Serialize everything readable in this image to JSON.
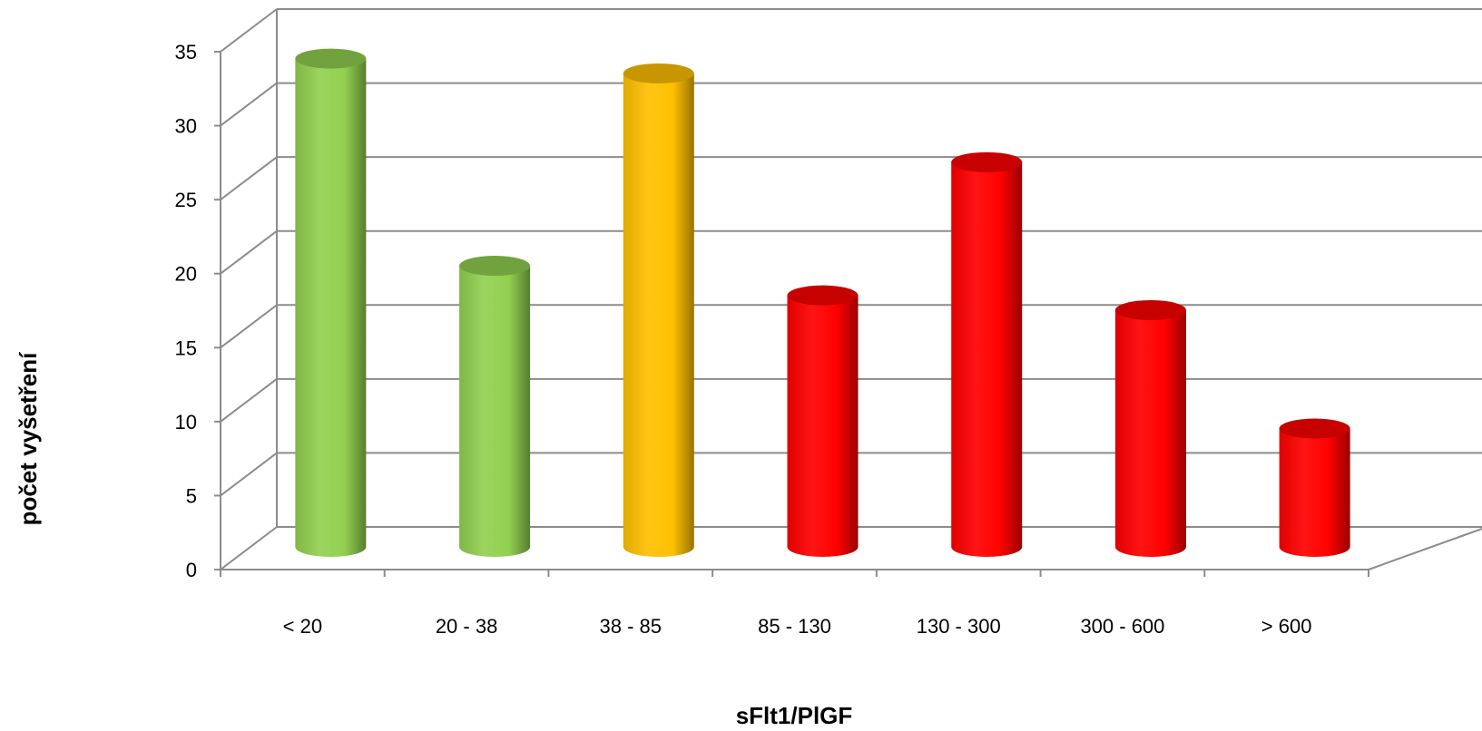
{
  "chart_data": {
    "type": "bar",
    "style": "3d-cylinder",
    "categories": [
      "< 20",
      "20 - 38",
      "38 - 85",
      "85 - 130",
      "130 - 300",
      "300 - 600",
      "> 600"
    ],
    "values": [
      33,
      19,
      32,
      17,
      26,
      16,
      8
    ],
    "colors": [
      "#92d050",
      "#92d050",
      "#ffc000",
      "#ff0000",
      "#ff0000",
      "#ff0000",
      "#ff0000"
    ],
    "xlabel": "sFlt1/PlGF",
    "ylabel": "počet vyšetření",
    "ylim": [
      0,
      35
    ],
    "yticks": [
      0,
      5,
      10,
      15,
      20,
      25,
      30,
      35
    ],
    "grid": true
  }
}
